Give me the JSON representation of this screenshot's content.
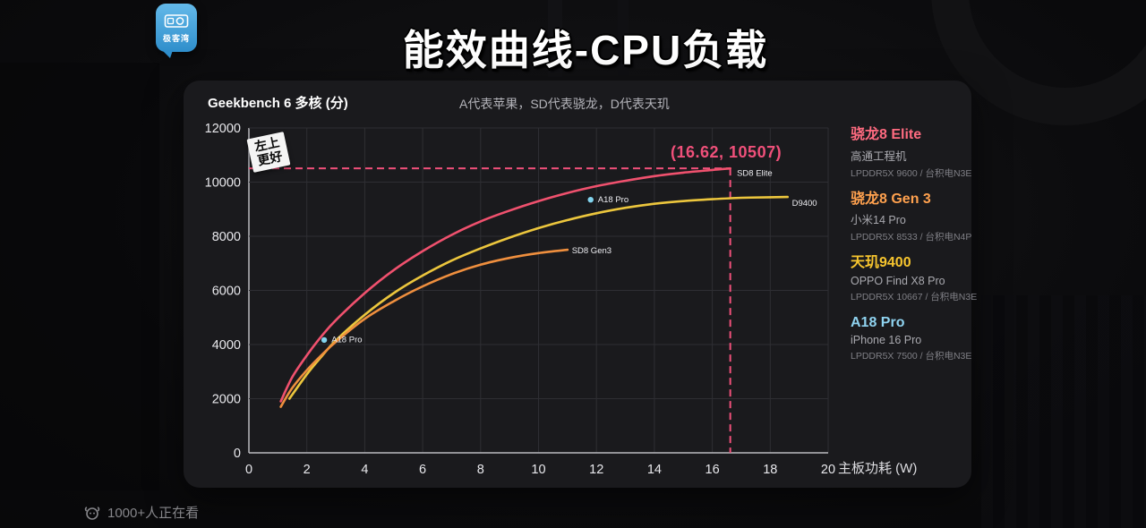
{
  "branding": {
    "logo_text": "极客湾",
    "logo_color": "#3d9fd6"
  },
  "header": {
    "title": "能效曲线-CPU负载"
  },
  "panel": {
    "metric_label": "Geekbench 6 多核 (分)",
    "subtitle": "A代表苹果，SD代表骁龙，D代表天玑",
    "better_tag_line1": "左上",
    "better_tag_line2": "更好",
    "annotation_text": "(16.62, 10507)",
    "x_axis_label": "主板功耗 (W)"
  },
  "legend": [
    {
      "name": "骁龙8 Elite",
      "device": "高通工程机",
      "memory_process": "LPDDR5X 9600 / 台积电N3E",
      "color": "#ff6b80"
    },
    {
      "name": "骁龙8 Gen 3",
      "device": "小米14 Pro",
      "memory_process": "LPDDR5X 8533 / 台积电N4P",
      "color": "#ffa14e"
    },
    {
      "name": "天玑9400",
      "device": "OPPO Find X8 Pro",
      "memory_process": "LPDDR5X 10667 / 台积电N3E",
      "color": "#f7c52e"
    },
    {
      "name": "A18 Pro",
      "device": "iPhone 16 Pro",
      "memory_process": "LPDDR5X 7500 / 台积电N3E",
      "color": "#8fd3f0"
    }
  ],
  "footer": {
    "watching": "1000+人正在看"
  },
  "chart_data": {
    "type": "line",
    "title": "能效曲线-CPU负载",
    "xlabel": "主板功耗 (W)",
    "ylabel": "Geekbench 6 多核 (分)",
    "xlim": [
      0,
      20
    ],
    "ylim": [
      0,
      12000
    ],
    "x_ticks": [
      0,
      2,
      4,
      6,
      8,
      10,
      12,
      14,
      16,
      18,
      20
    ],
    "y_ticks": [
      0,
      2000,
      4000,
      6000,
      8000,
      10000,
      12000
    ],
    "grid": true,
    "legend_position": "right",
    "annotation": {
      "text": "(16.62, 10507)",
      "x": 16.62,
      "y": 10507,
      "color": "#f0507a"
    },
    "series": [
      {
        "name": "SD8 Elite",
        "kind": "line",
        "color": "#f0516e",
        "points": [
          [
            1.1,
            1900
          ],
          [
            1.5,
            2800
          ],
          [
            2,
            3600
          ],
          [
            2.5,
            4300
          ],
          [
            3,
            4900
          ],
          [
            4,
            5900
          ],
          [
            5,
            6750
          ],
          [
            6,
            7450
          ],
          [
            7,
            8050
          ],
          [
            8,
            8550
          ],
          [
            9,
            8950
          ],
          [
            10,
            9300
          ],
          [
            11,
            9600
          ],
          [
            12,
            9850
          ],
          [
            13,
            10050
          ],
          [
            14,
            10220
          ],
          [
            15,
            10350
          ],
          [
            16,
            10450
          ],
          [
            16.62,
            10507
          ]
        ],
        "labels": [
          {
            "text": "SD8 Elite",
            "x": 16.85,
            "y": 10230
          }
        ]
      },
      {
        "name": "D9400",
        "kind": "line",
        "color": "#ecc63d",
        "points": [
          [
            1.4,
            2000
          ],
          [
            2,
            2900
          ],
          [
            2.5,
            3550
          ],
          [
            3,
            4150
          ],
          [
            4,
            5100
          ],
          [
            5,
            5900
          ],
          [
            6,
            6550
          ],
          [
            7,
            7100
          ],
          [
            8,
            7550
          ],
          [
            9,
            7950
          ],
          [
            10,
            8300
          ],
          [
            11,
            8600
          ],
          [
            12,
            8850
          ],
          [
            13,
            9050
          ],
          [
            14,
            9200
          ],
          [
            15,
            9300
          ],
          [
            16,
            9370
          ],
          [
            17,
            9420
          ],
          [
            18,
            9440
          ],
          [
            18.6,
            9450
          ]
        ],
        "labels": [
          {
            "text": "D9400",
            "x": 18.75,
            "y": 9130
          }
        ]
      },
      {
        "name": "SD8 Gen3",
        "kind": "line",
        "color": "#ef8f3e",
        "points": [
          [
            1.1,
            1700
          ],
          [
            1.5,
            2400
          ],
          [
            2,
            3050
          ],
          [
            2.5,
            3600
          ],
          [
            3,
            4100
          ],
          [
            4,
            4950
          ],
          [
            5,
            5600
          ],
          [
            6,
            6150
          ],
          [
            7,
            6600
          ],
          [
            8,
            6950
          ],
          [
            9,
            7200
          ],
          [
            10,
            7380
          ],
          [
            11,
            7500
          ]
        ],
        "labels": [
          {
            "text": "SD8 Gen3",
            "x": 11.15,
            "y": 7380
          }
        ]
      },
      {
        "name": "A18 Pro",
        "kind": "scatter",
        "color": "#82d4ee",
        "points": [
          [
            2.6,
            4170
          ],
          [
            11.8,
            9350
          ]
        ],
        "labels": [
          {
            "text": "A18 Pro",
            "x": 2.85,
            "y": 4080
          },
          {
            "text": "A18 Pro",
            "x": 12.05,
            "y": 9260
          }
        ]
      }
    ]
  }
}
